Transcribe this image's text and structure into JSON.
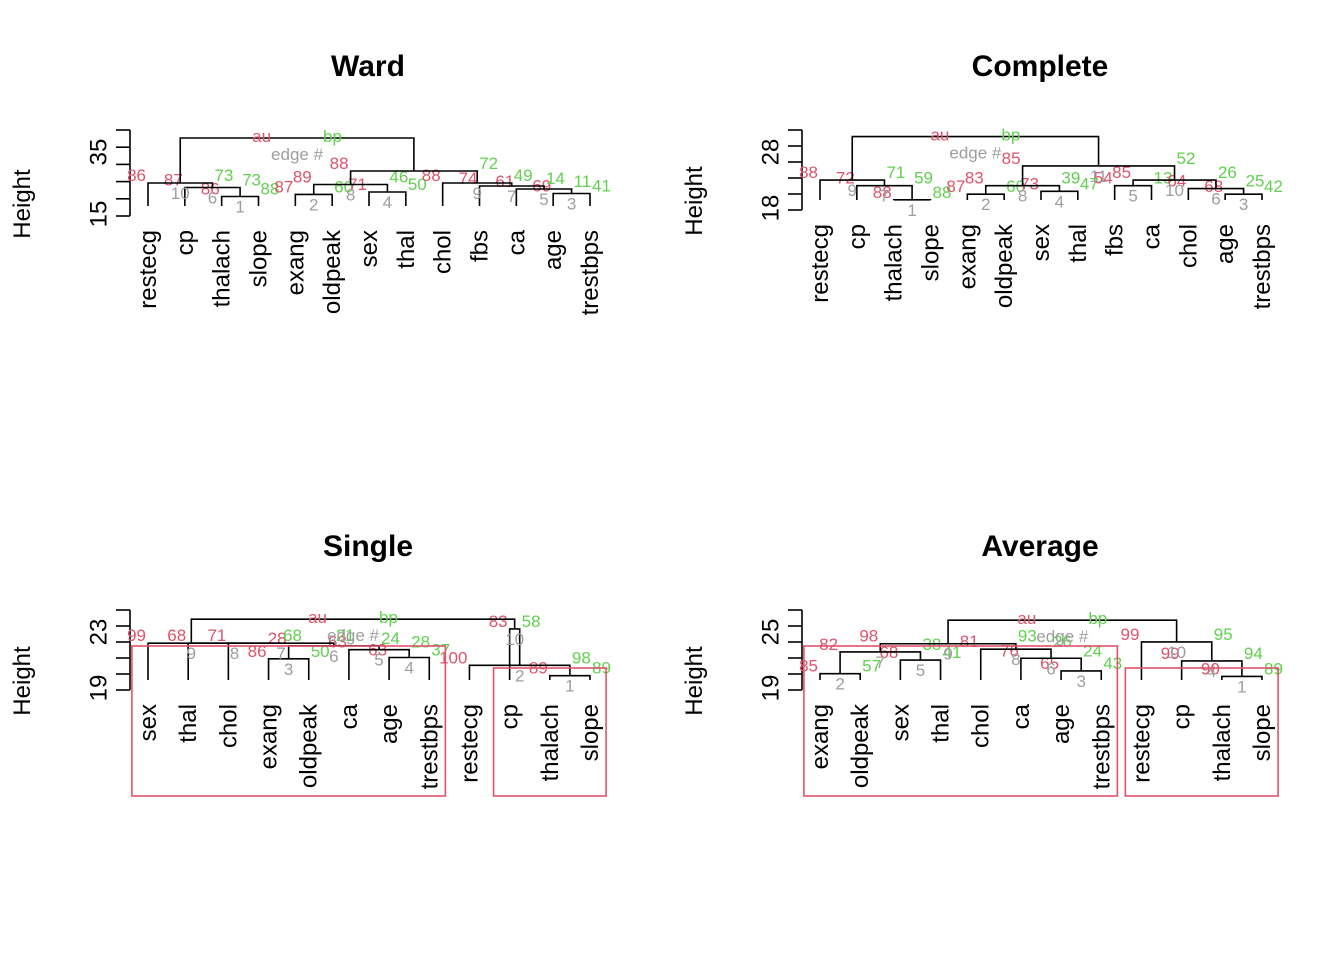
{
  "colors": {
    "au": "#DF536B",
    "bp": "#61D04F",
    "edge": "#9E9E9E",
    "tree": "#000000"
  },
  "chart_data": [
    {
      "type": "dendrogram",
      "title": "Ward",
      "ylabel": "Height",
      "yticks": [
        "15",
        "35"
      ],
      "ylim": [
        12,
        40
      ],
      "legend": [
        "au",
        "bp",
        "edge #"
      ],
      "leaves": [
        "restecg",
        "cp",
        "thalach",
        "slope",
        "exang",
        "oldpeak",
        "sex",
        "thal",
        "chol",
        "fbs",
        "ca",
        "age",
        "trestbps"
      ],
      "merges": [
        {
          "a": -3,
          "b": -4,
          "h": 18.5,
          "au": "86",
          "bp": "88",
          "edge": "1"
        },
        {
          "a": -5,
          "b": -6,
          "h": 19.2,
          "au": "87",
          "bp": "60",
          "edge": "2"
        },
        {
          "a": -12,
          "b": -13,
          "h": 19.5,
          "au": "69",
          "bp": "41",
          "edge": "3"
        },
        {
          "a": -7,
          "b": -8,
          "h": 20.0,
          "au": "71",
          "bp": "50",
          "edge": "4"
        },
        {
          "a": -11,
          "b": 3,
          "h": 21.0,
          "au": "61",
          "bp": "11",
          "edge": "5"
        },
        {
          "a": -2,
          "b": 1,
          "h": 21.5,
          "au": "87",
          "bp": "73",
          "edge": "6"
        },
        {
          "a": -10,
          "b": 5,
          "h": 22.0,
          "au": "74",
          "bp": "14",
          "edge": "7"
        },
        {
          "a": 2,
          "b": 4,
          "h": 22.5,
          "au": "89",
          "bp": "46",
          "edge": "8"
        },
        {
          "a": -9,
          "b": 7,
          "h": 23.0,
          "au": "88",
          "bp": "49",
          "edge": "9"
        },
        {
          "a": -1,
          "b": 6,
          "h": 23.0,
          "au": "86",
          "bp": "73",
          "edge": "10"
        },
        {
          "a": 8,
          "b": 9,
          "h": 27.0,
          "au": "88",
          "bp": "72",
          "edge": ""
        },
        {
          "a": 10,
          "b": 11,
          "h": 38.0,
          "au": "",
          "bp": "",
          "edge": ""
        }
      ],
      "clusters": []
    },
    {
      "type": "dendrogram",
      "title": "Complete",
      "ylabel": "Height",
      "yticks": [
        "18",
        "28"
      ],
      "ylim": [
        16.7,
        30.5
      ],
      "legend": [
        "au",
        "bp",
        "edge #"
      ],
      "leaves": [
        "restecg",
        "cp",
        "thalach",
        "slope",
        "exang",
        "oldpeak",
        "sex",
        "thal",
        "fbs",
        "ca",
        "chol",
        "age",
        "trestbps"
      ],
      "merges": [
        {
          "a": -3,
          "b": -4,
          "h": 18.5,
          "au": "88",
          "bp": "88",
          "edge": "1"
        },
        {
          "a": -5,
          "b": -6,
          "h": 19.5,
          "au": "87",
          "bp": "60",
          "edge": "2"
        },
        {
          "a": -12,
          "b": -13,
          "h": 19.5,
          "au": "68",
          "bp": "42",
          "edge": "3"
        },
        {
          "a": -7,
          "b": -8,
          "h": 20.0,
          "au": "73",
          "bp": "47",
          "edge": "4"
        },
        {
          "a": -9,
          "b": -10,
          "h": 21.0,
          "au": "54",
          "bp": "13",
          "edge": "5"
        },
        {
          "a": -11,
          "b": 3,
          "h": 20.5,
          "au": "64",
          "bp": "25",
          "edge": "6"
        },
        {
          "a": -2,
          "b": 1,
          "h": 21.0,
          "au": "72",
          "bp": "59",
          "edge": "7"
        },
        {
          "a": 2,
          "b": 4,
          "h": 21.0,
          "au": "83",
          "bp": "39",
          "edge": "8"
        },
        {
          "a": -1,
          "b": 7,
          "h": 22.0,
          "au": "88",
          "bp": "71",
          "edge": "9"
        },
        {
          "a": 5,
          "b": 6,
          "h": 22.0,
          "au": "85",
          "bp": "26",
          "edge": "10"
        },
        {
          "a": 8,
          "b": 10,
          "h": 24.5,
          "au": "85",
          "bp": "52",
          "edge": "11"
        },
        {
          "a": 9,
          "b": 11,
          "h": 29.7,
          "au": "",
          "bp": "",
          "edge": ""
        }
      ],
      "clusters": []
    },
    {
      "type": "dendrogram",
      "title": "Single",
      "ylabel": "Height",
      "yticks": [
        "19",
        "23"
      ],
      "ylim": [
        18.4,
        24.4
      ],
      "legend": [
        "au",
        "bp",
        "edge #"
      ],
      "leaves": [
        "sex",
        "thal",
        "chol",
        "exang",
        "oldpeak",
        "ca",
        "age",
        "trestbps",
        "restecg",
        "cp",
        "thalach",
        "slope"
      ],
      "merges": [
        {
          "a": -11,
          "b": -12,
          "h": 19.5,
          "au": "89",
          "bp": "89",
          "edge": "1"
        },
        {
          "a": -9,
          "b": 1,
          "h": 20.3,
          "au": "100",
          "bp": "98",
          "edge": "2"
        },
        {
          "a": -4,
          "b": -5,
          "h": 20.8,
          "au": "86",
          "bp": "50",
          "edge": "3"
        },
        {
          "a": -7,
          "b": -8,
          "h": 20.9,
          "au": "63",
          "bp": "37",
          "edge": "4"
        },
        {
          "a": -6,
          "b": 4,
          "h": 21.5,
          "au": "63",
          "bp": "28",
          "edge": "5"
        },
        {
          "a": 3,
          "b": 5,
          "h": 21.8,
          "au": "28",
          "bp": "24",
          "edge": "6"
        },
        {
          "a": -3,
          "b": 6,
          "h": 22.0,
          "au": "71",
          "bp": "21",
          "edge": "7"
        },
        {
          "a": -2,
          "b": 7,
          "h": 22.0,
          "au": "68",
          "bp": "68",
          "edge": "8"
        },
        {
          "a": -1,
          "b": 8,
          "h": 22.0,
          "au": "99",
          "bp": "",
          "edge": "9"
        },
        {
          "a": -10,
          "b": 2,
          "h": 23.1,
          "au": "83",
          "bp": "58",
          "edge": "10"
        },
        {
          "a": 9,
          "b": 10,
          "h": 23.85,
          "au": "",
          "bp": "",
          "edge": ""
        }
      ],
      "clusters": [
        [
          0,
          8
        ],
        [
          9,
          12
        ]
      ]
    },
    {
      "type": "dendrogram",
      "title": "Average",
      "ylabel": "Height",
      "yticks": [
        "19",
        "25"
      ],
      "ylim": [
        18.2,
        26.8
      ],
      "legend": [
        "au",
        "bp",
        "edge #"
      ],
      "leaves": [
        "exang",
        "oldpeak",
        "sex",
        "thal",
        "chol",
        "ca",
        "age",
        "trestbps",
        "restecg",
        "cp",
        "thalach",
        "slope"
      ],
      "merges": [
        {
          "a": -11,
          "b": -12,
          "h": 19.7,
          "au": "90",
          "bp": "89",
          "edge": "1"
        },
        {
          "a": -1,
          "b": -2,
          "h": 20.0,
          "au": "85",
          "bp": "57",
          "edge": "2"
        },
        {
          "a": -7,
          "b": -8,
          "h": 20.3,
          "au": "65",
          "bp": "43",
          "edge": "3"
        },
        {
          "a": -10,
          "b": 1,
          "h": 21.4,
          "au": "99",
          "bp": "94",
          "edge": "4"
        },
        {
          "a": -3,
          "b": -4,
          "h": 21.5,
          "au": "68",
          "bp": "41",
          "edge": "5"
        },
        {
          "a": -6,
          "b": 3,
          "h": 21.7,
          "au": "76",
          "bp": "24",
          "edge": "6"
        },
        {
          "a": 2,
          "b": 5,
          "h": 22.4,
          "au": "82",
          "bp": "38",
          "edge": "7"
        },
        {
          "a": -5,
          "b": 6,
          "h": 22.7,
          "au": "81",
          "bp": "26",
          "edge": "8"
        },
        {
          "a": 7,
          "b": 8,
          "h": 23.3,
          "au": "98",
          "bp": "93",
          "edge": "9"
        },
        {
          "a": -9,
          "b": 4,
          "h": 23.5,
          "au": "99",
          "bp": "95",
          "edge": "10"
        },
        {
          "a": 9,
          "b": 10,
          "h": 25.9,
          "au": "",
          "bp": "",
          "edge": ""
        }
      ],
      "clusters": [
        [
          0,
          8
        ],
        [
          8,
          12
        ]
      ]
    }
  ]
}
